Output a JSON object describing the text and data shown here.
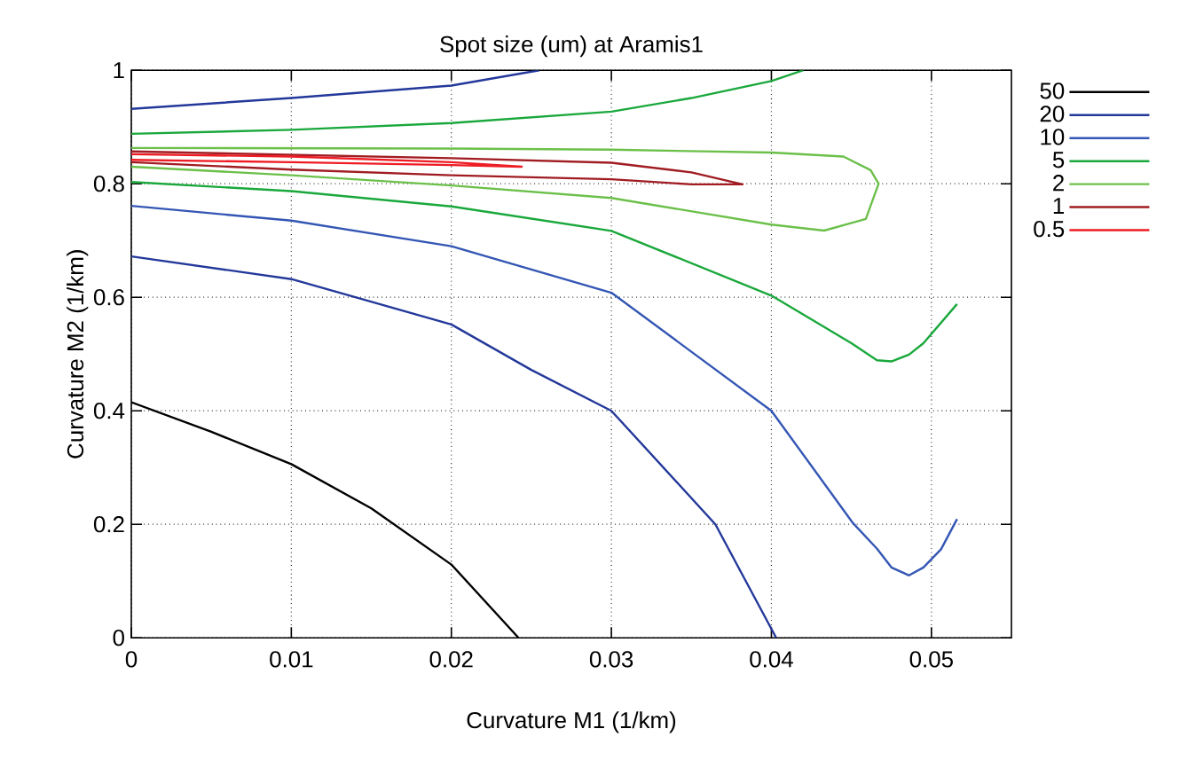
{
  "chart_data": {
    "type": "line",
    "title": "Spot size (um) at Aramis1",
    "xlabel": "Curvature M1 (1/km)",
    "ylabel": "Curvature M2 (1/km)",
    "xlim": [
      0,
      0.055
    ],
    "ylim": [
      0,
      1
    ],
    "xticks": [
      0,
      0.01,
      0.02,
      0.03,
      0.04,
      0.05
    ],
    "yticks": [
      0,
      0.2,
      0.4,
      0.6,
      0.8,
      1
    ],
    "grid": true,
    "legend": "top right",
    "marker": "none",
    "line_style": "solid",
    "series": [
      {
        "name": "50",
        "color": "#000000",
        "x": [
          0,
          0.005,
          0.01,
          0.015,
          0.02,
          0.0242
        ],
        "values": [
          0.415,
          0.363,
          0.306,
          0.228,
          0.129,
          0
        ]
      },
      {
        "name": "20",
        "color": "#23389a",
        "x": [
          0,
          0.01,
          0.02,
          0.025,
          0.03,
          0.0365,
          0.0403,
          null,
          0,
          0.01,
          0.02,
          0.0255
        ],
        "values": [
          0.672,
          0.632,
          0.552,
          0.472,
          0.4,
          0.2,
          0,
          null,
          0.932,
          0.951,
          0.973,
          1
        ]
      },
      {
        "name": "10",
        "color": "#3456b4",
        "x": [
          0,
          0.01,
          0.02,
          0.03,
          0.04,
          0.0451,
          0.0466,
          0.0475,
          0.0486,
          0.0495,
          0.0506,
          0.0516
        ],
        "values": [
          0.761,
          0.735,
          0.69,
          0.608,
          0.4,
          0.202,
          0.157,
          0.124,
          0.11,
          0.124,
          0.156,
          0.209
        ]
      },
      {
        "name": "5",
        "color": "#1aa83c",
        "x": [
          0,
          0.01,
          0.02,
          0.03,
          0.04,
          0.045,
          0.0466,
          0.0475,
          0.0486,
          0.0495,
          0.0516,
          null,
          0,
          0.01,
          0.02,
          0.03,
          0.035,
          0.04,
          0.042
        ],
        "values": [
          0.803,
          0.787,
          0.76,
          0.717,
          0.603,
          0.519,
          0.489,
          0.487,
          0.499,
          0.519,
          0.588,
          null,
          0.888,
          0.895,
          0.907,
          0.927,
          0.951,
          0.981,
          1
        ]
      },
      {
        "name": "2",
        "color": "#6cc04a",
        "x": [
          0,
          0.02,
          0.03,
          0.04,
          0.0445,
          0.0462,
          0.0467,
          0.0459,
          0.0433,
          0.04,
          0.03,
          0.02,
          0.01,
          0
        ],
        "values": [
          0.863,
          0.862,
          0.86,
          0.855,
          0.848,
          0.824,
          0.8,
          0.738,
          0.7175,
          0.728,
          0.775,
          0.797,
          0.815,
          0.83
        ]
      },
      {
        "name": "1",
        "color": "#a01c22",
        "x": [
          0,
          0.02,
          0.03,
          0.035,
          0.0382,
          0.035,
          0.03,
          0.02,
          0.01,
          0
        ],
        "values": [
          0.857,
          0.845,
          0.837,
          0.82,
          0.799,
          0.799,
          0.808,
          0.815,
          0.825,
          0.838
        ]
      },
      {
        "name": "0.5",
        "color": "#ee1c24",
        "x": [
          0,
          0.01,
          0.02,
          0.0244,
          0.02,
          0.01,
          0
        ],
        "values": [
          0.852,
          0.848,
          0.838,
          0.83,
          0.833,
          0.838,
          0.842
        ]
      }
    ]
  }
}
